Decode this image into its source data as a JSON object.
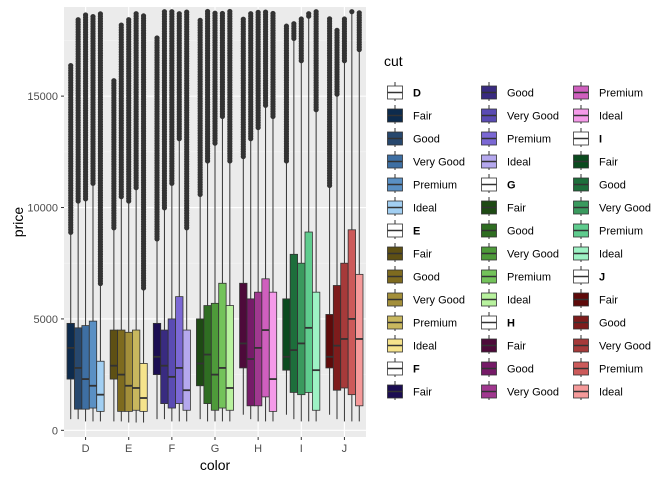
{
  "chart_data": {
    "type": "boxplot",
    "xlabel": "color",
    "ylabel": "price",
    "legend_title": "cut",
    "legend_position": "right",
    "grid": true,
    "ylim": [
      -300,
      19000
    ],
    "y_ticks": [
      0,
      5000,
      10000,
      15000
    ],
    "y_tick_labels": [
      "0",
      "5000",
      "10000",
      "15000"
    ],
    "categories": [
      "D",
      "E",
      "F",
      "G",
      "H",
      "I",
      "J"
    ],
    "cuts": [
      "Fair",
      "Good",
      "Very Good",
      "Premium",
      "Ideal"
    ],
    "groups": [
      {
        "color": "D",
        "boxes": [
          {
            "cut": "Fair",
            "fill": "#0d2b4d",
            "whisker_low": 500,
            "q1": 2300,
            "median": 3700,
            "q3": 4800,
            "whisker_high": 8800,
            "outlier_top": 16400
          },
          {
            "cut": "Good",
            "fill": "#27486e",
            "whisker_low": 500,
            "q1": 950,
            "median": 2800,
            "q3": 4600,
            "whisker_high": 10200,
            "outlier_top": 18500
          },
          {
            "cut": "Very Good",
            "fill": "#3e6fa3",
            "whisker_low": 400,
            "q1": 950,
            "median": 2300,
            "q3": 4700,
            "whisker_high": 10300,
            "outlier_top": 18700
          },
          {
            "cut": "Premium",
            "fill": "#5a90c4",
            "whisker_low": 400,
            "q1": 1000,
            "median": 2000,
            "q3": 4900,
            "whisker_high": 11000,
            "outlier_top": 18600
          },
          {
            "cut": "Ideal",
            "fill": "#a2cff2",
            "whisker_low": 400,
            "q1": 850,
            "median": 1600,
            "q3": 3100,
            "whisker_high": 6500,
            "outlier_top": 18700
          }
        ]
      },
      {
        "color": "E",
        "boxes": [
          {
            "cut": "Fair",
            "fill": "#5e5014",
            "whisker_low": 400,
            "q1": 2300,
            "median": 2900,
            "q3": 4500,
            "whisker_high": 9000,
            "outlier_top": 15700
          },
          {
            "cut": "Good",
            "fill": "#7e6b1f",
            "whisker_low": 400,
            "q1": 850,
            "median": 2500,
            "q3": 4500,
            "whisker_high": 10400,
            "outlier_top": 18200
          },
          {
            "cut": "Very Good",
            "fill": "#a38f3a",
            "whisker_low": 350,
            "q1": 850,
            "median": 2000,
            "q3": 4400,
            "whisker_high": 10200,
            "outlier_top": 18500
          },
          {
            "cut": "Premium",
            "fill": "#c8b75e",
            "whisker_low": 350,
            "q1": 900,
            "median": 1900,
            "q3": 4500,
            "whisker_high": 10800,
            "outlier_top": 18700
          },
          {
            "cut": "Ideal",
            "fill": "#f5e38c",
            "whisker_low": 350,
            "q1": 850,
            "median": 1450,
            "q3": 3000,
            "whisker_high": 6300,
            "outlier_top": 18700
          }
        ]
      },
      {
        "color": "F",
        "boxes": [
          {
            "cut": "Fair",
            "fill": "#1b0d52",
            "whisker_low": 500,
            "q1": 2500,
            "median": 3300,
            "q3": 4800,
            "whisker_high": 8500,
            "outlier_top": 17700
          },
          {
            "cut": "Good",
            "fill": "#392b80",
            "whisker_low": 500,
            "q1": 1200,
            "median": 2900,
            "q3": 4500,
            "whisker_high": 9900,
            "outlier_top": 18800
          },
          {
            "cut": "Very Good",
            "fill": "#5a4bb3",
            "whisker_low": 400,
            "q1": 1000,
            "median": 2400,
            "q3": 5000,
            "whisker_high": 11000,
            "outlier_top": 18800
          },
          {
            "cut": "Premium",
            "fill": "#7b68d4",
            "whisker_low": 400,
            "q1": 1200,
            "median": 2800,
            "q3": 6000,
            "whisker_high": 13000,
            "outlier_top": 18800
          },
          {
            "cut": "Ideal",
            "fill": "#b5a8ee",
            "whisker_low": 400,
            "q1": 900,
            "median": 1800,
            "q3": 4500,
            "whisker_high": 9000,
            "outlier_top": 18800
          }
        ]
      },
      {
        "color": "G",
        "boxes": [
          {
            "cut": "Fair",
            "fill": "#1e4a14",
            "whisker_low": 500,
            "q1": 2000,
            "median": 3000,
            "q3": 5000,
            "whisker_high": 10500,
            "outlier_top": 18500
          },
          {
            "cut": "Good",
            "fill": "#2f6e22",
            "whisker_low": 400,
            "q1": 1200,
            "median": 3400,
            "q3": 5600,
            "whisker_high": 12000,
            "outlier_top": 18800
          },
          {
            "cut": "Very Good",
            "fill": "#4e9a3a",
            "whisker_low": 400,
            "q1": 900,
            "median": 2500,
            "q3": 5700,
            "whisker_high": 12800,
            "outlier_top": 18800
          },
          {
            "cut": "Premium",
            "fill": "#73c35a",
            "whisker_low": 400,
            "q1": 1000,
            "median": 2800,
            "q3": 6600,
            "whisker_high": 14000,
            "outlier_top": 18800
          },
          {
            "cut": "Ideal",
            "fill": "#b8f29e",
            "whisker_low": 400,
            "q1": 900,
            "median": 1900,
            "q3": 5600,
            "whisker_high": 12000,
            "outlier_top": 18800
          }
        ]
      },
      {
        "color": "H",
        "boxes": [
          {
            "cut": "Fair",
            "fill": "#4d0a3a",
            "whisker_low": 700,
            "q1": 2800,
            "median": 3900,
            "q3": 6600,
            "whisker_high": 12200,
            "outlier_top": 18500
          },
          {
            "cut": "Good",
            "fill": "#761b68",
            "whisker_low": 500,
            "q1": 1100,
            "median": 3200,
            "q3": 5900,
            "whisker_high": 13000,
            "outlier_top": 18700
          },
          {
            "cut": "Very Good",
            "fill": "#a0388f",
            "whisker_low": 400,
            "q1": 1100,
            "median": 3700,
            "q3": 6200,
            "whisker_high": 13500,
            "outlier_top": 18800
          },
          {
            "cut": "Premium",
            "fill": "#cf5fbe",
            "whisker_low": 400,
            "q1": 1500,
            "median": 4500,
            "q3": 6800,
            "whisker_high": 14500,
            "outlier_top": 18800
          },
          {
            "cut": "Ideal",
            "fill": "#f59ae9",
            "whisker_low": 400,
            "q1": 850,
            "median": 2300,
            "q3": 6200,
            "whisker_high": 14000,
            "outlier_top": 18800
          }
        ]
      },
      {
        "color": "I",
        "boxes": [
          {
            "cut": "Fair",
            "fill": "#0a4a1e",
            "whisker_low": 700,
            "q1": 2700,
            "median": 3300,
            "q3": 5900,
            "whisker_high": 12000,
            "outlier_top": 18200
          },
          {
            "cut": "Good",
            "fill": "#1d6e3b",
            "whisker_low": 500,
            "q1": 1700,
            "median": 3600,
            "q3": 7900,
            "whisker_high": 17500,
            "outlier_top": 18300
          },
          {
            "cut": "Very Good",
            "fill": "#3a9a5e",
            "whisker_low": 400,
            "q1": 1600,
            "median": 3900,
            "q3": 7500,
            "whisker_high": 16500,
            "outlier_top": 18500
          },
          {
            "cut": "Premium",
            "fill": "#5fcc8e",
            "whisker_low": 400,
            "q1": 1700,
            "median": 4600,
            "q3": 8900,
            "whisker_high": 18500,
            "outlier_top": 18800
          },
          {
            "cut": "Ideal",
            "fill": "#9df2c4",
            "whisker_low": 400,
            "q1": 900,
            "median": 2700,
            "q3": 6200,
            "whisker_high": 14300,
            "outlier_top": 18800
          }
        ]
      },
      {
        "color": "J",
        "boxes": [
          {
            "cut": "Fair",
            "fill": "#5e0a0a",
            "whisker_low": 700,
            "q1": 2800,
            "median": 3300,
            "q3": 5200,
            "whisker_high": 10900,
            "outlier_top": 18500
          },
          {
            "cut": "Good",
            "fill": "#7e1c1c",
            "whisker_low": 500,
            "q1": 1800,
            "median": 3800,
            "q3": 6500,
            "whisker_high": 15000,
            "outlier_top": 18000
          },
          {
            "cut": "Very Good",
            "fill": "#a63a3a",
            "whisker_low": 400,
            "q1": 1900,
            "median": 4100,
            "q3": 7500,
            "whisker_high": 16500,
            "outlier_top": 18500
          },
          {
            "cut": "Premium",
            "fill": "#cc5a5a",
            "whisker_low": 400,
            "q1": 1600,
            "median": 5000,
            "q3": 9000,
            "whisker_high": 18700,
            "outlier_top": 18800
          },
          {
            "cut": "Ideal",
            "fill": "#f59a9a",
            "whisker_low": 400,
            "q1": 1100,
            "median": 4100,
            "q3": 7000,
            "whisker_high": 17000,
            "outlier_top": 18800
          }
        ]
      }
    ],
    "legend_columns": [
      [
        {
          "label": "D",
          "fill": "#ffffff",
          "bold": true
        },
        {
          "label": "Fair",
          "fill": "#0d2b4d"
        },
        {
          "label": "Good",
          "fill": "#27486e"
        },
        {
          "label": "Very Good",
          "fill": "#3e6fa3"
        },
        {
          "label": "Premium",
          "fill": "#5a90c4"
        },
        {
          "label": "Ideal",
          "fill": "#a2cff2"
        },
        {
          "label": "E",
          "fill": "#ffffff",
          "bold": true
        },
        {
          "label": "Fair",
          "fill": "#5e5014"
        },
        {
          "label": "Good",
          "fill": "#7e6b1f"
        },
        {
          "label": "Very Good",
          "fill": "#a38f3a"
        },
        {
          "label": "Premium",
          "fill": "#c8b75e"
        },
        {
          "label": "Ideal",
          "fill": "#f5e38c"
        },
        {
          "label": "F",
          "fill": "#ffffff",
          "bold": true
        },
        {
          "label": "Fair",
          "fill": "#1b0d52"
        }
      ],
      [
        {
          "label": "Good",
          "fill": "#392b80"
        },
        {
          "label": "Very Good",
          "fill": "#5a4bb3"
        },
        {
          "label": "Premium",
          "fill": "#7b68d4"
        },
        {
          "label": "Ideal",
          "fill": "#b5a8ee"
        },
        {
          "label": "G",
          "fill": "#ffffff",
          "bold": true
        },
        {
          "label": "Fair",
          "fill": "#1e4a14"
        },
        {
          "label": "Good",
          "fill": "#2f6e22"
        },
        {
          "label": "Very Good",
          "fill": "#4e9a3a"
        },
        {
          "label": "Premium",
          "fill": "#73c35a"
        },
        {
          "label": "Ideal",
          "fill": "#b8f29e"
        },
        {
          "label": "H",
          "fill": "#ffffff",
          "bold": true
        },
        {
          "label": "Fair",
          "fill": "#4d0a3a"
        },
        {
          "label": "Good",
          "fill": "#761b68"
        },
        {
          "label": "Very Good",
          "fill": "#a0388f"
        }
      ],
      [
        {
          "label": "Premium",
          "fill": "#cf5fbe"
        },
        {
          "label": "Ideal",
          "fill": "#f59ae9"
        },
        {
          "label": "I",
          "fill": "#ffffff",
          "bold": true
        },
        {
          "label": "Fair",
          "fill": "#0a4a1e"
        },
        {
          "label": "Good",
          "fill": "#1d6e3b"
        },
        {
          "label": "Very Good",
          "fill": "#3a9a5e"
        },
        {
          "label": "Premium",
          "fill": "#5fcc8e"
        },
        {
          "label": "Ideal",
          "fill": "#9df2c4"
        },
        {
          "label": "J",
          "fill": "#ffffff",
          "bold": true
        },
        {
          "label": "Fair",
          "fill": "#5e0a0a"
        },
        {
          "label": "Good",
          "fill": "#7e1c1c"
        },
        {
          "label": "Very Good",
          "fill": "#a63a3a"
        },
        {
          "label": "Premium",
          "fill": "#cc5a5a"
        },
        {
          "label": "Ideal",
          "fill": "#f59a9a"
        }
      ]
    ]
  }
}
